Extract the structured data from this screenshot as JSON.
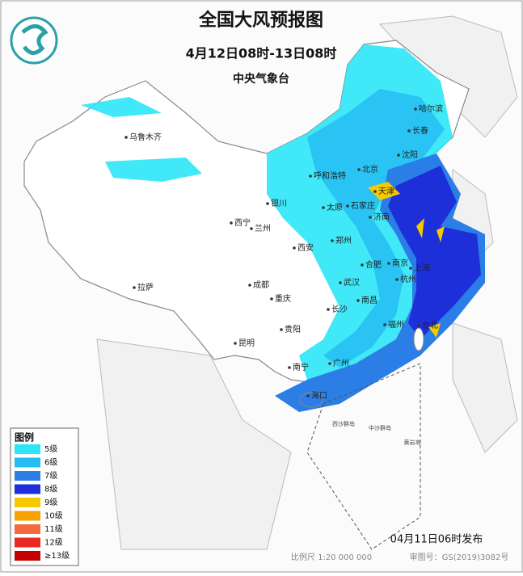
{
  "header": {
    "title": "全国大风预报图",
    "period": "4月12日08时-13日08时",
    "agency": "中央气象台"
  },
  "legend": {
    "title": "图例",
    "items": [
      {
        "label": "5级",
        "color": "#2ce6f7"
      },
      {
        "label": "6级",
        "color": "#26bdf2"
      },
      {
        "label": "7级",
        "color": "#2a7ee6"
      },
      {
        "label": "8级",
        "color": "#1c2fd8"
      },
      {
        "label": "9级",
        "color": "#f5c800"
      },
      {
        "label": "10级",
        "color": "#f5a200"
      },
      {
        "label": "11级",
        "color": "#f56a40"
      },
      {
        "label": "12级",
        "color": "#e82a20"
      },
      {
        "label": "≥13级",
        "color": "#c40000"
      }
    ]
  },
  "cities": [
    "乌鲁木齐",
    "哈尔滨",
    "长春",
    "沈阳",
    "北京",
    "天津",
    "呼和浩特",
    "石家庄",
    "太原",
    "济南",
    "银川",
    "西宁",
    "兰州",
    "郑州",
    "西安",
    "合肥",
    "南京",
    "上海",
    "杭州",
    "武汉",
    "成都",
    "拉萨",
    "重庆",
    "南昌",
    "长沙",
    "福州",
    "台北",
    "贵阳",
    "昆明",
    "广州",
    "南宁",
    "海口"
  ],
  "islands": [
    "西沙群岛",
    "中沙群岛",
    "黄岩岛"
  ],
  "footer": {
    "issued": "04月11日06时发布",
    "scale": "比例尺 1:20 000 000",
    "approval": "审图号：GS(2019)3082号"
  }
}
